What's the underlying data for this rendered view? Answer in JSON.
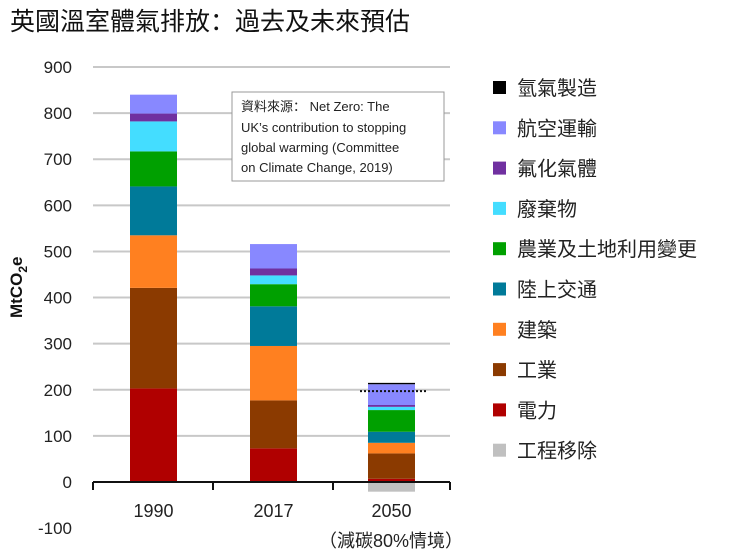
{
  "chart_data": {
    "type": "bar",
    "stacked": true,
    "title": "英國溫室體氣排放：過去及未來預估",
    "ylabel": "MtCO2e",
    "ylabel_main": "MtCO",
    "ylabel_sub": "2",
    "ylabel_tail": "e",
    "ylim": [
      -100,
      900
    ],
    "yticks": [
      900,
      800,
      700,
      600,
      500,
      400,
      300,
      200,
      100,
      0,
      -100
    ],
    "grid": true,
    "legend_position": "right",
    "categories": [
      "1990",
      "2017",
      "2050"
    ],
    "category_note": "（減碳80%情境）",
    "reference_line": {
      "category": "2050",
      "value": 197,
      "style": "dotted"
    },
    "series": [
      {
        "name": "電力",
        "color": "#b00000",
        "values": [
          203,
          73,
          7
        ]
      },
      {
        "name": "工業",
        "color": "#8b3a00",
        "values": [
          218,
          104,
          55
        ]
      },
      {
        "name": "建築",
        "color": "#ff8020",
        "values": [
          114,
          118,
          23
        ]
      },
      {
        "name": "陸上交通",
        "color": "#007a99",
        "values": [
          106,
          86,
          24
        ]
      },
      {
        "name": "農業及土地利用變更",
        "color": "#00a000",
        "values": [
          76,
          48,
          47
        ]
      },
      {
        "name": "廢棄物",
        "color": "#44ddff",
        "values": [
          65,
          19,
          7
        ]
      },
      {
        "name": "氟化氣體",
        "color": "#7030a0",
        "values": [
          17,
          15,
          4
        ]
      },
      {
        "name": "航空運輸",
        "color": "#8888ff",
        "values": [
          41,
          53,
          45
        ]
      },
      {
        "name": "氫氣製造",
        "color": "#000000",
        "values": [
          0,
          0,
          3
        ]
      },
      {
        "name": "工程移除",
        "color": "#c0c0c0",
        "values": [
          0,
          0,
          -21
        ]
      }
    ],
    "legend_order": [
      "氫氣製造",
      "航空運輸",
      "氟化氣體",
      "廢棄物",
      "農業及土地利用變更",
      "陸上交通",
      "建築",
      "工業",
      "電力",
      "工程移除"
    ],
    "annotation": {
      "lines": [
        "資料來源： Net Zero: The",
        "UK’s contribution to stopping",
        "global warming (Committee",
        "on Climate Change, 2019)"
      ]
    }
  }
}
